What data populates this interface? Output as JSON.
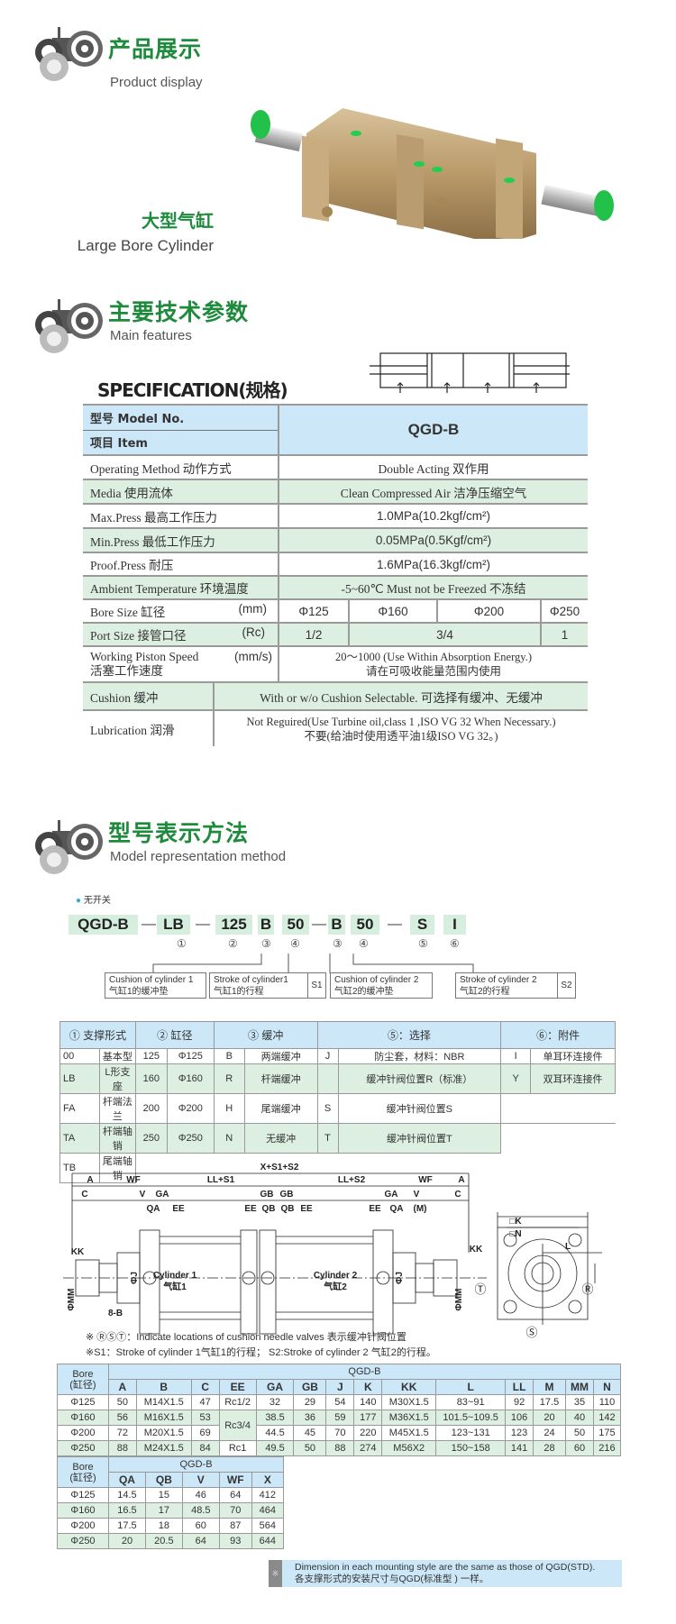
{
  "colors": {
    "title_green": "#1e8b3c",
    "header_blue": "#cce7f7",
    "row_green": "#dcefe1"
  },
  "section1": {
    "icon": "gears-icon",
    "title": "产品展示",
    "subtitle": "Product display"
  },
  "product": {
    "name_cn": "大型气缸",
    "name_en": "Large Bore Cylinder",
    "image": "large-bore-cylinder-photo"
  },
  "section2": {
    "icon": "gears-icon",
    "title": "主要技术参数",
    "subtitle": "Main features"
  },
  "spec": {
    "title": "SPECIFICATION(规格)",
    "model_label": "型号 Model No.",
    "item_label": "项目 Item",
    "model": "QGD-B",
    "rows": [
      {
        "label": "Operating Method 动作方式",
        "value": "Double Acting 双作用"
      },
      {
        "label": "Media 使用流体",
        "value": "Clean Compressed Air 洁净压缩空气"
      },
      {
        "label": "Max.Press 最高工作压力",
        "value": "1.0MPa(10.2kgf/cm²)"
      },
      {
        "label": "Min.Press 最低工作压力",
        "value": "0.05MPa(0.5Kgf/cm²)"
      },
      {
        "label": "Proof.Press 耐压",
        "value": "1.6MPa(16.3kgf/cm²)"
      },
      {
        "label": "Ambient Temperature 环境温度",
        "value": "-5~60℃  Must not be Freezed 不冻结"
      }
    ],
    "bore": {
      "label": "Bore Size 缸径",
      "unit": "(mm)",
      "values": [
        "Φ125",
        "Φ160",
        "Φ200",
        "Φ250"
      ]
    },
    "port": {
      "label": "Port Size 接管口径",
      "unit": "(Rc)",
      "values": [
        "1/2",
        "3/4",
        "1"
      ]
    },
    "speed": {
      "label": "Working Piston Speed",
      "unit": "(mm/s)",
      "label_cn": "活塞工作速度",
      "value": "20～1000 (Use Within Absorption Energy.)",
      "value_cn": "请在可吸收能量范围内使用"
    },
    "cushion": {
      "label": "Cushion 缓冲",
      "value": "With or w/o Cushion Selectable. 可选择有缓冲、无缓冲"
    },
    "lubrication": {
      "label": "Lubrication 润滑",
      "value": "Not Reguired(Use Turbine oil,class 1 ,ISO VG 32 When Necessary.)",
      "value_cn": "不要(给油时使用透平油1级ISO VG 32。)"
    }
  },
  "section3": {
    "icon": "gears-icon",
    "title": "型号表示方法",
    "subtitle": "Model representation method"
  },
  "model_code": {
    "switch_note": "无开关",
    "parts": [
      "QGD-B",
      "LB",
      "125",
      "B",
      "50",
      "B",
      "50",
      "S",
      "I"
    ],
    "dash": "—",
    "circled": [
      "①",
      "②",
      "③",
      "④",
      "③",
      "④",
      "⑤",
      "⑥"
    ],
    "boxes": [
      {
        "en": "Cushion of cylinder 1",
        "cn": "气缸1的缓冲垫"
      },
      {
        "en": "Stroke of cylinder1",
        "cn": "气缸1的行程",
        "tag": "S1"
      },
      {
        "en": "Cushion of cylinder 2",
        "cn": "气缸2的缓冲垫"
      },
      {
        "en": "Stroke of cylinder 2",
        "cn": "气缸2的行程",
        "tag": "S2"
      }
    ]
  },
  "options": {
    "headers": [
      "① 支撑形式",
      "② 缸径",
      "③ 缓冲",
      "⑤：选择",
      "⑥：附件"
    ],
    "rows": [
      [
        "00",
        "基本型",
        "125",
        "Φ125",
        "B",
        "两端缓冲",
        "J",
        "防尘套，材料：NBR",
        "I",
        "单耳环连接件"
      ],
      [
        "LB",
        "L形支座",
        "160",
        "Φ160",
        "R",
        "杆端缓冲",
        "",
        "缓冲针阀位置R（标准）",
        "Y",
        "双耳环连接件"
      ],
      [
        "FA",
        "杆端法兰",
        "200",
        "Φ200",
        "H",
        "尾端缓冲",
        "S",
        "缓冲针阀位置S"
      ],
      [
        "TA",
        "杆端轴销",
        "250",
        "Φ250",
        "N",
        "无缓冲",
        "T",
        "缓冲针阀位置T"
      ],
      [
        "TB",
        "尾端轴销"
      ]
    ]
  },
  "drawing": {
    "labels": {
      "total": "X+S1+S2",
      "a": "A",
      "wf": "WF",
      "ll1": "LL+S1",
      "ll2": "LL+S2",
      "c": "C",
      "v": "V",
      "ga": "GA",
      "gb": "GB",
      "qa": "QA",
      "qb": "QB",
      "ee": "EE",
      "m": "(M)",
      "kk": "KK",
      "mm": "ΦMM",
      "j": "ΦJ",
      "b8": "8-B",
      "cyl1": "Cylinder 1",
      "cyl1_cn": "气缸1",
      "cyl2": "Cylinder 2",
      "cyl2_cn": "气缸2",
      "k": "□K",
      "n": "□N",
      "l": "L",
      "t": "Ⓣ",
      "r": "Ⓡ",
      "s": "Ⓢ"
    },
    "note1": "※ ⓇⓈⓉ：Indicate locations of cushion needle valves 表示缓冲针阀位置",
    "note2": "※S1：Stroke of cylinder 1气缸1的行程；  S2:Stroke of cylinder 2 气缸2的行程。"
  },
  "dims1": {
    "bore_label": "Bore\n(缸径)",
    "model": "QGD-B",
    "cols": [
      "A",
      "B",
      "C",
      "EE",
      "GA",
      "GB",
      "J",
      "K",
      "KK",
      "L",
      "LL",
      "M",
      "MM",
      "N"
    ],
    "rows": [
      [
        "Φ125",
        "50",
        "M14X1.5",
        "47",
        "Rc1/2",
        "32",
        "29",
        "54",
        "140",
        "M30X1.5",
        "83~91",
        "92",
        "17.5",
        "35",
        "110"
      ],
      [
        "Φ160",
        "56",
        "M16X1.5",
        "53",
        "Rc3/4",
        "38.5",
        "36",
        "59",
        "177",
        "M36X1.5",
        "101.5~109.5",
        "106",
        "20",
        "40",
        "142"
      ],
      [
        "Φ200",
        "72",
        "M20X1.5",
        "69",
        null,
        "44.5",
        "45",
        "70",
        "220",
        "M45X1.5",
        "123~131",
        "123",
        "24",
        "50",
        "175"
      ],
      [
        "Φ250",
        "88",
        "M24X1.5",
        "84",
        "Rc1",
        "49.5",
        "50",
        "88",
        "274",
        "M56X2",
        "150~158",
        "141",
        "28",
        "60",
        "216"
      ]
    ]
  },
  "dims2": {
    "bore_label": "Bore\n(缸径)",
    "model": "QGD-B",
    "cols": [
      "QA",
      "QB",
      "V",
      "WF",
      "X"
    ],
    "rows": [
      [
        "Φ125",
        "14.5",
        "15",
        "46",
        "64",
        "412"
      ],
      [
        "Φ160",
        "16.5",
        "17",
        "48.5",
        "70",
        "464"
      ],
      [
        "Φ200",
        "17.5",
        "18",
        "60",
        "87",
        "564"
      ],
      [
        "Φ250",
        "20",
        "20.5",
        "64",
        "93",
        "644"
      ]
    ]
  },
  "footnote": {
    "mark": "※",
    "en": "Dimension in each mounting style are the same as those of QGD(STD).",
    "cn": "各支撑形式的安装尺寸与QGD(标准型 ) 一样。"
  }
}
